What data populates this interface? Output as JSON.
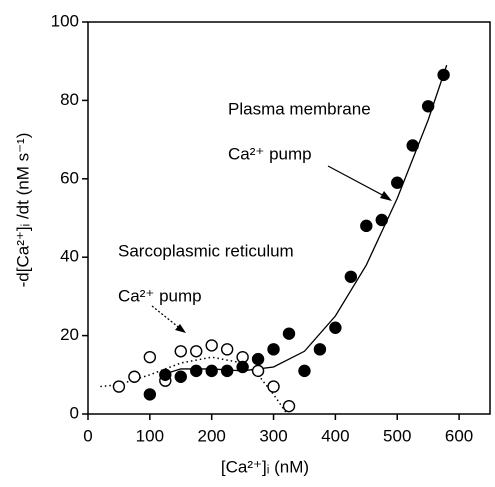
{
  "chart_data": {
    "type": "scatter",
    "x_label": "[Ca²⁺]ᵢ (nM)",
    "y_label": "-d[Ca²⁺]ᵢ /dt (nM s⁻¹)",
    "xlim": [
      0,
      650
    ],
    "xticks": [
      0,
      100,
      200,
      300,
      400,
      500,
      600
    ],
    "ylim": [
      0,
      100
    ],
    "yticks": [
      0,
      20,
      40,
      60,
      80,
      100
    ],
    "annotations": [
      "Plasma membrane",
      "Ca²⁺ pump",
      "Sarcoplasmic reticulum",
      "Ca²⁺ pump"
    ],
    "series": [
      {
        "marker": "open",
        "color": "#000000",
        "x": [
          50,
          75,
          100,
          125,
          150,
          175,
          200,
          225,
          250,
          275,
          300,
          325
        ],
        "values": [
          7,
          9.5,
          14.5,
          8.5,
          16,
          16,
          17.5,
          16.5,
          14.5,
          11,
          7,
          2
        ]
      },
      {
        "marker": "filled",
        "color": "#000000",
        "x": [
          100,
          125,
          150,
          175,
          200,
          225,
          250,
          275,
          300,
          325,
          350,
          375,
          400,
          425,
          450,
          475,
          500,
          525,
          550,
          575
        ],
        "values": [
          5,
          10,
          9.5,
          11,
          11,
          11,
          12,
          14,
          16.5,
          20.5,
          11,
          16.5,
          22,
          35,
          48,
          49.5,
          59,
          68.5,
          78.5,
          86.5
        ]
      },
      {
        "line": "dotted",
        "color": "#000000",
        "x": [
          20,
          50,
          100,
          150,
          200,
          250,
          275,
          300,
          322
        ],
        "values": [
          7,
          7.5,
          10,
          13,
          14.5,
          13,
          10,
          5,
          0
        ]
      },
      {
        "line": "solid",
        "color": "#000000",
        "x": [
          120,
          150,
          200,
          250,
          300,
          350,
          400,
          450,
          500,
          550,
          580
        ],
        "values": [
          10,
          11.5,
          11.5,
          11,
          12,
          16,
          25,
          38,
          55,
          75,
          89
        ]
      }
    ]
  }
}
